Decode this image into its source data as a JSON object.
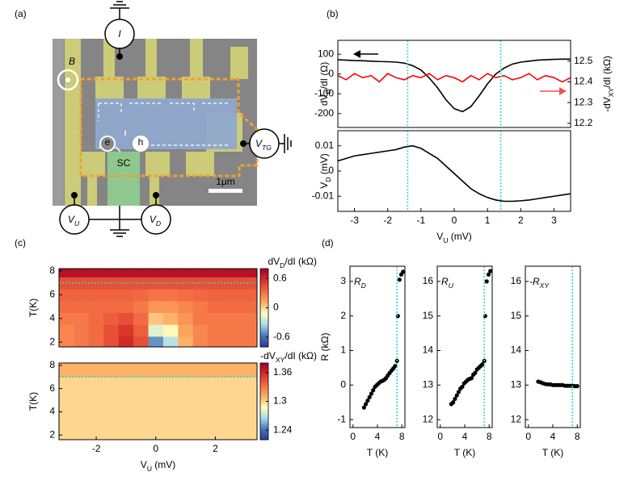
{
  "panel_labels": [
    "(a)",
    "(b)",
    "(c)",
    "(d)"
  ],
  "device": {
    "I": "I",
    "B": "B",
    "e": "e",
    "h": "h",
    "SC": "SC",
    "scale": "1μm",
    "V_TG": [
      "V",
      "TG"
    ],
    "V_U": [
      "V",
      "U"
    ],
    "V_D": [
      "V",
      "D"
    ]
  },
  "chart_data": [
    {
      "type": "line",
      "x": [
        -3.5,
        -3.25,
        -3,
        -2.75,
        -2.5,
        -2.25,
        -2,
        -1.75,
        -1.5,
        -1.25,
        -1,
        -0.75,
        -0.5,
        -0.25,
        0,
        0.25,
        0.5,
        0.75,
        1,
        1.25,
        1.5,
        1.75,
        2,
        2.25,
        2.5,
        2.75,
        3,
        3.25,
        3.5
      ],
      "series": [
        {
          "color": "#000000",
          "values": [
            72,
            70,
            68,
            67,
            65,
            63,
            62,
            60,
            55,
            42,
            20,
            -20,
            -70,
            -130,
            -175,
            -190,
            -165,
            -110,
            -50,
            0,
            30,
            50,
            60,
            65,
            70,
            72,
            74,
            75,
            75
          ]
        },
        {
          "color": "#ff0000",
          "axis": "y2",
          "values": [
            12.43,
            12.41,
            12.44,
            12.42,
            12.43,
            12.4,
            12.44,
            12.42,
            12.41,
            12.43,
            12.42,
            12.44,
            12.41,
            12.43,
            12.42,
            12.4,
            12.43,
            12.41,
            12.44,
            12.42,
            12.43,
            12.41,
            12.42,
            12.44,
            12.41,
            12.43,
            12.42,
            12.4,
            12.42
          ]
        }
      ],
      "xlim": [
        -3.5,
        3.5
      ],
      "ylim": [
        -270,
        170
      ],
      "yticks": [
        -200,
        -100,
        0,
        100
      ],
      "y2lim": [
        12.18,
        12.6
      ],
      "y2ticks": [
        12.2,
        12.3,
        12.4,
        12.5
      ],
      "ylabel": [
        "dV",
        "D",
        "/dI (Ω)"
      ],
      "y2label": [
        "-dV",
        "XY",
        "/dI (kΩ)"
      ],
      "vlines": [
        -1.4,
        1.4
      ]
    },
    {
      "type": "line",
      "x": [
        -3.5,
        -3.25,
        -3,
        -2.75,
        -2.5,
        -2.25,
        -2,
        -1.75,
        -1.5,
        -1.25,
        -1,
        -0.75,
        -0.5,
        -0.25,
        0,
        0.25,
        0.5,
        0.75,
        1,
        1.25,
        1.5,
        1.75,
        2,
        2.25,
        2.5,
        2.75,
        3,
        3.25,
        3.5
      ],
      "series": [
        {
          "color": "#000000",
          "values": [
            0.004,
            0.005,
            0.006,
            0.0065,
            0.007,
            0.0075,
            0.008,
            0.0085,
            0.0095,
            0.01,
            0.009,
            0.007,
            0.005,
            0.002,
            -0.001,
            -0.004,
            -0.007,
            -0.009,
            -0.0105,
            -0.0115,
            -0.012,
            -0.012,
            -0.0118,
            -0.0115,
            -0.011,
            -0.0105,
            -0.01,
            -0.0095,
            -0.009
          ]
        }
      ],
      "xlim": [
        -3.5,
        3.5
      ],
      "xticks": [
        -3,
        -2,
        -1,
        0,
        1,
        2,
        3
      ],
      "ylim": [
        -0.016,
        0.016
      ],
      "yticks": [
        -0.01,
        0,
        0.01
      ],
      "xlabel": [
        "V",
        "U",
        " (mV)"
      ],
      "ylabel": [
        "V",
        "D",
        " (mV)"
      ],
      "vlines": [
        -1.4,
        1.4
      ]
    },
    {
      "type": "heatmap",
      "x": [
        -3.5,
        -3,
        -2.5,
        -2,
        -1.5,
        -1,
        -0.5,
        0,
        0.5,
        1,
        1.5,
        2,
        2.5,
        3,
        3.5
      ],
      "y": [
        2,
        3,
        4,
        5,
        6,
        7,
        8
      ],
      "values": [
        [
          0.25,
          0.25,
          0.3,
          0.35,
          0.45,
          0.6,
          0.45,
          -0.5,
          -0.3,
          0.1,
          0.25,
          0.3,
          0.3,
          0.3,
          0.3
        ],
        [
          0.25,
          0.25,
          0.3,
          0.35,
          0.45,
          0.55,
          0.4,
          -0.2,
          -0.1,
          0.15,
          0.25,
          0.3,
          0.3,
          0.3,
          0.3
        ],
        [
          0.3,
          0.3,
          0.3,
          0.35,
          0.4,
          0.45,
          0.35,
          0.05,
          0.1,
          0.2,
          0.3,
          0.3,
          0.3,
          0.3,
          0.3
        ],
        [
          0.35,
          0.35,
          0.35,
          0.35,
          0.35,
          0.35,
          0.3,
          0.2,
          0.2,
          0.25,
          0.3,
          0.35,
          0.35,
          0.35,
          0.35
        ],
        [
          0.38,
          0.38,
          0.38,
          0.38,
          0.38,
          0.38,
          0.36,
          0.32,
          0.32,
          0.34,
          0.36,
          0.38,
          0.38,
          0.38,
          0.38
        ],
        [
          0.45,
          0.45,
          0.45,
          0.45,
          0.45,
          0.45,
          0.45,
          0.45,
          0.45,
          0.45,
          0.45,
          0.45,
          0.45,
          0.45,
          0.45
        ],
        [
          0.72,
          0.72,
          0.72,
          0.72,
          0.72,
          0.72,
          0.72,
          0.72,
          0.72,
          0.72,
          0.72,
          0.72,
          0.72,
          0.72,
          0.72
        ]
      ],
      "xlim": [
        -3.25,
        3.4
      ],
      "ylim": [
        1.6,
        8.2
      ],
      "yticks": [
        2,
        4,
        6,
        8
      ],
      "zlim": [
        -0.8,
        0.8
      ],
      "colorbar_ticks": [
        -0.6,
        0,
        0.6
      ],
      "colors": [
        "#313695",
        "#4575b4",
        "#abd9e9",
        "#ffffbf",
        "#fdae61",
        "#f46d43",
        "#d73027",
        "#a50026"
      ],
      "colorbar_label": [
        "dV",
        "D",
        "/dI (kΩ)"
      ],
      "ylabel": [
        "T(K)"
      ],
      "hlines": [
        7
      ]
    },
    {
      "type": "heatmap",
      "x": [
        -3,
        -1,
        1,
        3
      ],
      "y": [
        2,
        4,
        6,
        8
      ],
      "values": [
        [
          1.3,
          1.3,
          1.3,
          1.3
        ],
        [
          1.3,
          1.3,
          1.3,
          1.3
        ],
        [
          1.3,
          1.3,
          1.3,
          1.3
        ],
        [
          1.31,
          1.31,
          1.31,
          1.31
        ]
      ],
      "xlim": [
        -3.25,
        3.4
      ],
      "xticks": [
        -2,
        0,
        2
      ],
      "ylim": [
        1.6,
        8.2
      ],
      "yticks": [
        2,
        4,
        6,
        8
      ],
      "zlim": [
        1.22,
        1.38
      ],
      "colorbar_ticks": [
        1.24,
        1.3,
        1.36
      ],
      "colors": [
        "#313695",
        "#4575b4",
        "#abd9e9",
        "#ffffbf",
        "#fdae61",
        "#f46d43",
        "#d73027",
        "#a50026"
      ],
      "colorbar_label": [
        "-dV",
        "XY",
        "/dI (kΩ)"
      ],
      "ylabel": [
        "T(K)"
      ],
      "xlabel": [
        "V",
        "U",
        " (mV)"
      ],
      "hlines": [
        7
      ]
    },
    {
      "type": "scatter",
      "title": [
        "R",
        "D"
      ],
      "color": "#000000",
      "x": [
        1.8,
        2.1,
        2.4,
        2.7,
        3.0,
        3.3,
        3.6,
        3.9,
        4.2,
        4.5,
        4.8,
        5.1,
        5.4,
        5.7,
        6.0,
        6.3,
        6.6,
        6.9,
        7.2,
        7.35,
        7.6,
        7.9,
        8.2
      ],
      "values": [
        -0.65,
        -0.55,
        -0.45,
        -0.35,
        -0.25,
        -0.15,
        -0.05,
        0.0,
        0.05,
        0.1,
        0.12,
        0.15,
        0.2,
        0.28,
        0.35,
        0.42,
        0.48,
        0.55,
        0.7,
        2.0,
        3.05,
        3.2,
        3.28
      ],
      "xlim": [
        -0.5,
        8.5
      ],
      "xticks": [
        0,
        4,
        8
      ],
      "ylim": [
        -1.23,
        3.44
      ],
      "yticks": [
        -1,
        0,
        1,
        2,
        3
      ],
      "xlabel": [
        "T (K)"
      ],
      "ylabel": [
        "R (kΩ)"
      ],
      "vlines": [
        7.2
      ]
    },
    {
      "type": "scatter",
      "title": [
        "R",
        "U"
      ],
      "color": "#000000",
      "x": [
        1.8,
        2.1,
        2.4,
        2.7,
        3.0,
        3.3,
        3.6,
        3.9,
        4.2,
        4.5,
        4.8,
        5.1,
        5.4,
        5.7,
        6.0,
        6.3,
        6.6,
        6.9,
        7.2,
        7.35,
        7.6,
        7.9,
        8.2
      ],
      "values": [
        12.45,
        12.5,
        12.6,
        12.7,
        12.8,
        12.9,
        12.95,
        13.05,
        13.1,
        13.15,
        13.18,
        13.2,
        13.3,
        13.35,
        13.45,
        13.5,
        13.55,
        13.6,
        13.7,
        15.0,
        16.0,
        16.2,
        16.3
      ],
      "xlim": [
        -0.5,
        8.5
      ],
      "xticks": [
        0,
        4,
        8
      ],
      "ylim": [
        11.77,
        16.44
      ],
      "yticks": [
        12,
        13,
        14,
        15,
        16
      ],
      "xlabel": [
        "T (K)"
      ],
      "vlines": [
        7.2
      ]
    },
    {
      "type": "scatter",
      "title": [
        "-R",
        "XY"
      ],
      "color": "#000000",
      "x": [
        1.6,
        2.0,
        2.4,
        2.8,
        3.2,
        3.6,
        4.0,
        4.4,
        4.8,
        5.2,
        5.6,
        6.0,
        6.4,
        6.8,
        7.2,
        7.6,
        8.0
      ],
      "values": [
        13.1,
        13.08,
        13.05,
        13.03,
        13.02,
        13.02,
        13.0,
        13.0,
        13.0,
        13.0,
        13.0,
        12.98,
        12.98,
        12.98,
        12.98,
        12.97,
        12.97
      ],
      "xlim": [
        -0.5,
        8.5
      ],
      "xticks": [
        0,
        4,
        8
      ],
      "ylim": [
        11.77,
        16.44
      ],
      "yticks": [
        12,
        13,
        14,
        15,
        16
      ],
      "xlabel": [
        "T (K)"
      ],
      "vlines": [
        7.2
      ]
    }
  ]
}
